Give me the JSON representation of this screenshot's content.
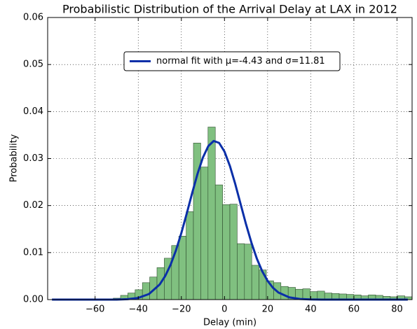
{
  "chart_data": {
    "type": "histogram",
    "title": "Probabilistic Distribution of the Arrival Delay at LAX in 2012",
    "xlabel": "Delay (min)",
    "ylabel": "Probability",
    "bins": [
      -82,
      -78.62,
      -75.24,
      -71.86,
      -68.48,
      -65.1,
      -61.72,
      -58.34,
      -54.96,
      -51.58,
      -48.2,
      -44.82,
      -41.44,
      -38.06,
      -34.68,
      -31.3,
      -27.92,
      -24.54,
      -21.16,
      -17.78,
      -14.4,
      -11.02,
      -7.64,
      -4.26,
      -0.88,
      2.5,
      5.88,
      9.26,
      12.64,
      16.02,
      19.4,
      22.78,
      26.16,
      29.54,
      32.92,
      36.3,
      39.68,
      43.06,
      46.44,
      49.82,
      53.2,
      56.58,
      59.96,
      63.34,
      66.72,
      70.1,
      73.48,
      76.86,
      80.24,
      83.62,
      87
    ],
    "values": [
      0,
      0,
      0,
      0,
      0,
      0,
      0,
      0,
      0.0001,
      0.0003,
      0.0009,
      0.0014,
      0.0021,
      0.0036,
      0.0048,
      0.0068,
      0.0088,
      0.0115,
      0.0135,
      0.0187,
      0.0333,
      0.0282,
      0.0367,
      0.0244,
      0.0202,
      0.0203,
      0.0119,
      0.0118,
      0.0073,
      0.0063,
      0.004,
      0.0036,
      0.0028,
      0.0026,
      0.0022,
      0.0023,
      0.0017,
      0.0018,
      0.0014,
      0.0013,
      0.0012,
      0.0011,
      0.001,
      0.0008,
      0.001,
      0.0009,
      0.0007,
      0.0006,
      0.0008,
      0.0006
    ],
    "color": "#80c080",
    "series": [
      {
        "name": "normal fit with μ=-4.43 and σ=11.81",
        "color": "#0a2fa8",
        "x": [
          -80,
          -75,
          -70,
          -65,
          -60,
          -55,
          -50,
          -45,
          -40,
          -35,
          -30,
          -27.5,
          -25,
          -22.5,
          -20,
          -17.5,
          -15,
          -12.5,
          -10,
          -7.5,
          -5,
          -2.5,
          0,
          2.5,
          5,
          7.5,
          10,
          12.5,
          15,
          17.5,
          20,
          22.5,
          25,
          30,
          35,
          40,
          45,
          50,
          55,
          60,
          65,
          70,
          75,
          80,
          85
        ],
        "values": [
          0,
          0,
          0,
          0,
          0,
          0,
          0,
          9e-05,
          0.00036,
          0.00119,
          0.00324,
          0.00501,
          0.00741,
          0.01048,
          0.01417,
          0.01831,
          0.02264,
          0.02675,
          0.03023,
          0.03266,
          0.03374,
          0.03333,
          0.03149,
          0.02844,
          0.02457,
          0.02028,
          0.01601,
          0.0121,
          0.00873,
          0.00603,
          0.00398,
          0.00251,
          0.00151,
          0.00048,
          0.00013,
          3e-05,
          0,
          0,
          0,
          0,
          0,
          0,
          0,
          0,
          0
        ]
      }
    ],
    "xlim": [
      -82,
      87
    ],
    "ylim": [
      0,
      0.06
    ],
    "xticks": [
      {
        "value": -60,
        "label": "−60"
      },
      {
        "value": -40,
        "label": "−40"
      },
      {
        "value": -20,
        "label": "−20"
      },
      0,
      20,
      40,
      60,
      80
    ],
    "yticks": [
      {
        "value": 0,
        "label": "0.00"
      },
      0.01,
      0.02,
      0.03,
      0.04,
      0.05,
      0.06
    ],
    "grid": true,
    "legend": "upper center"
  }
}
